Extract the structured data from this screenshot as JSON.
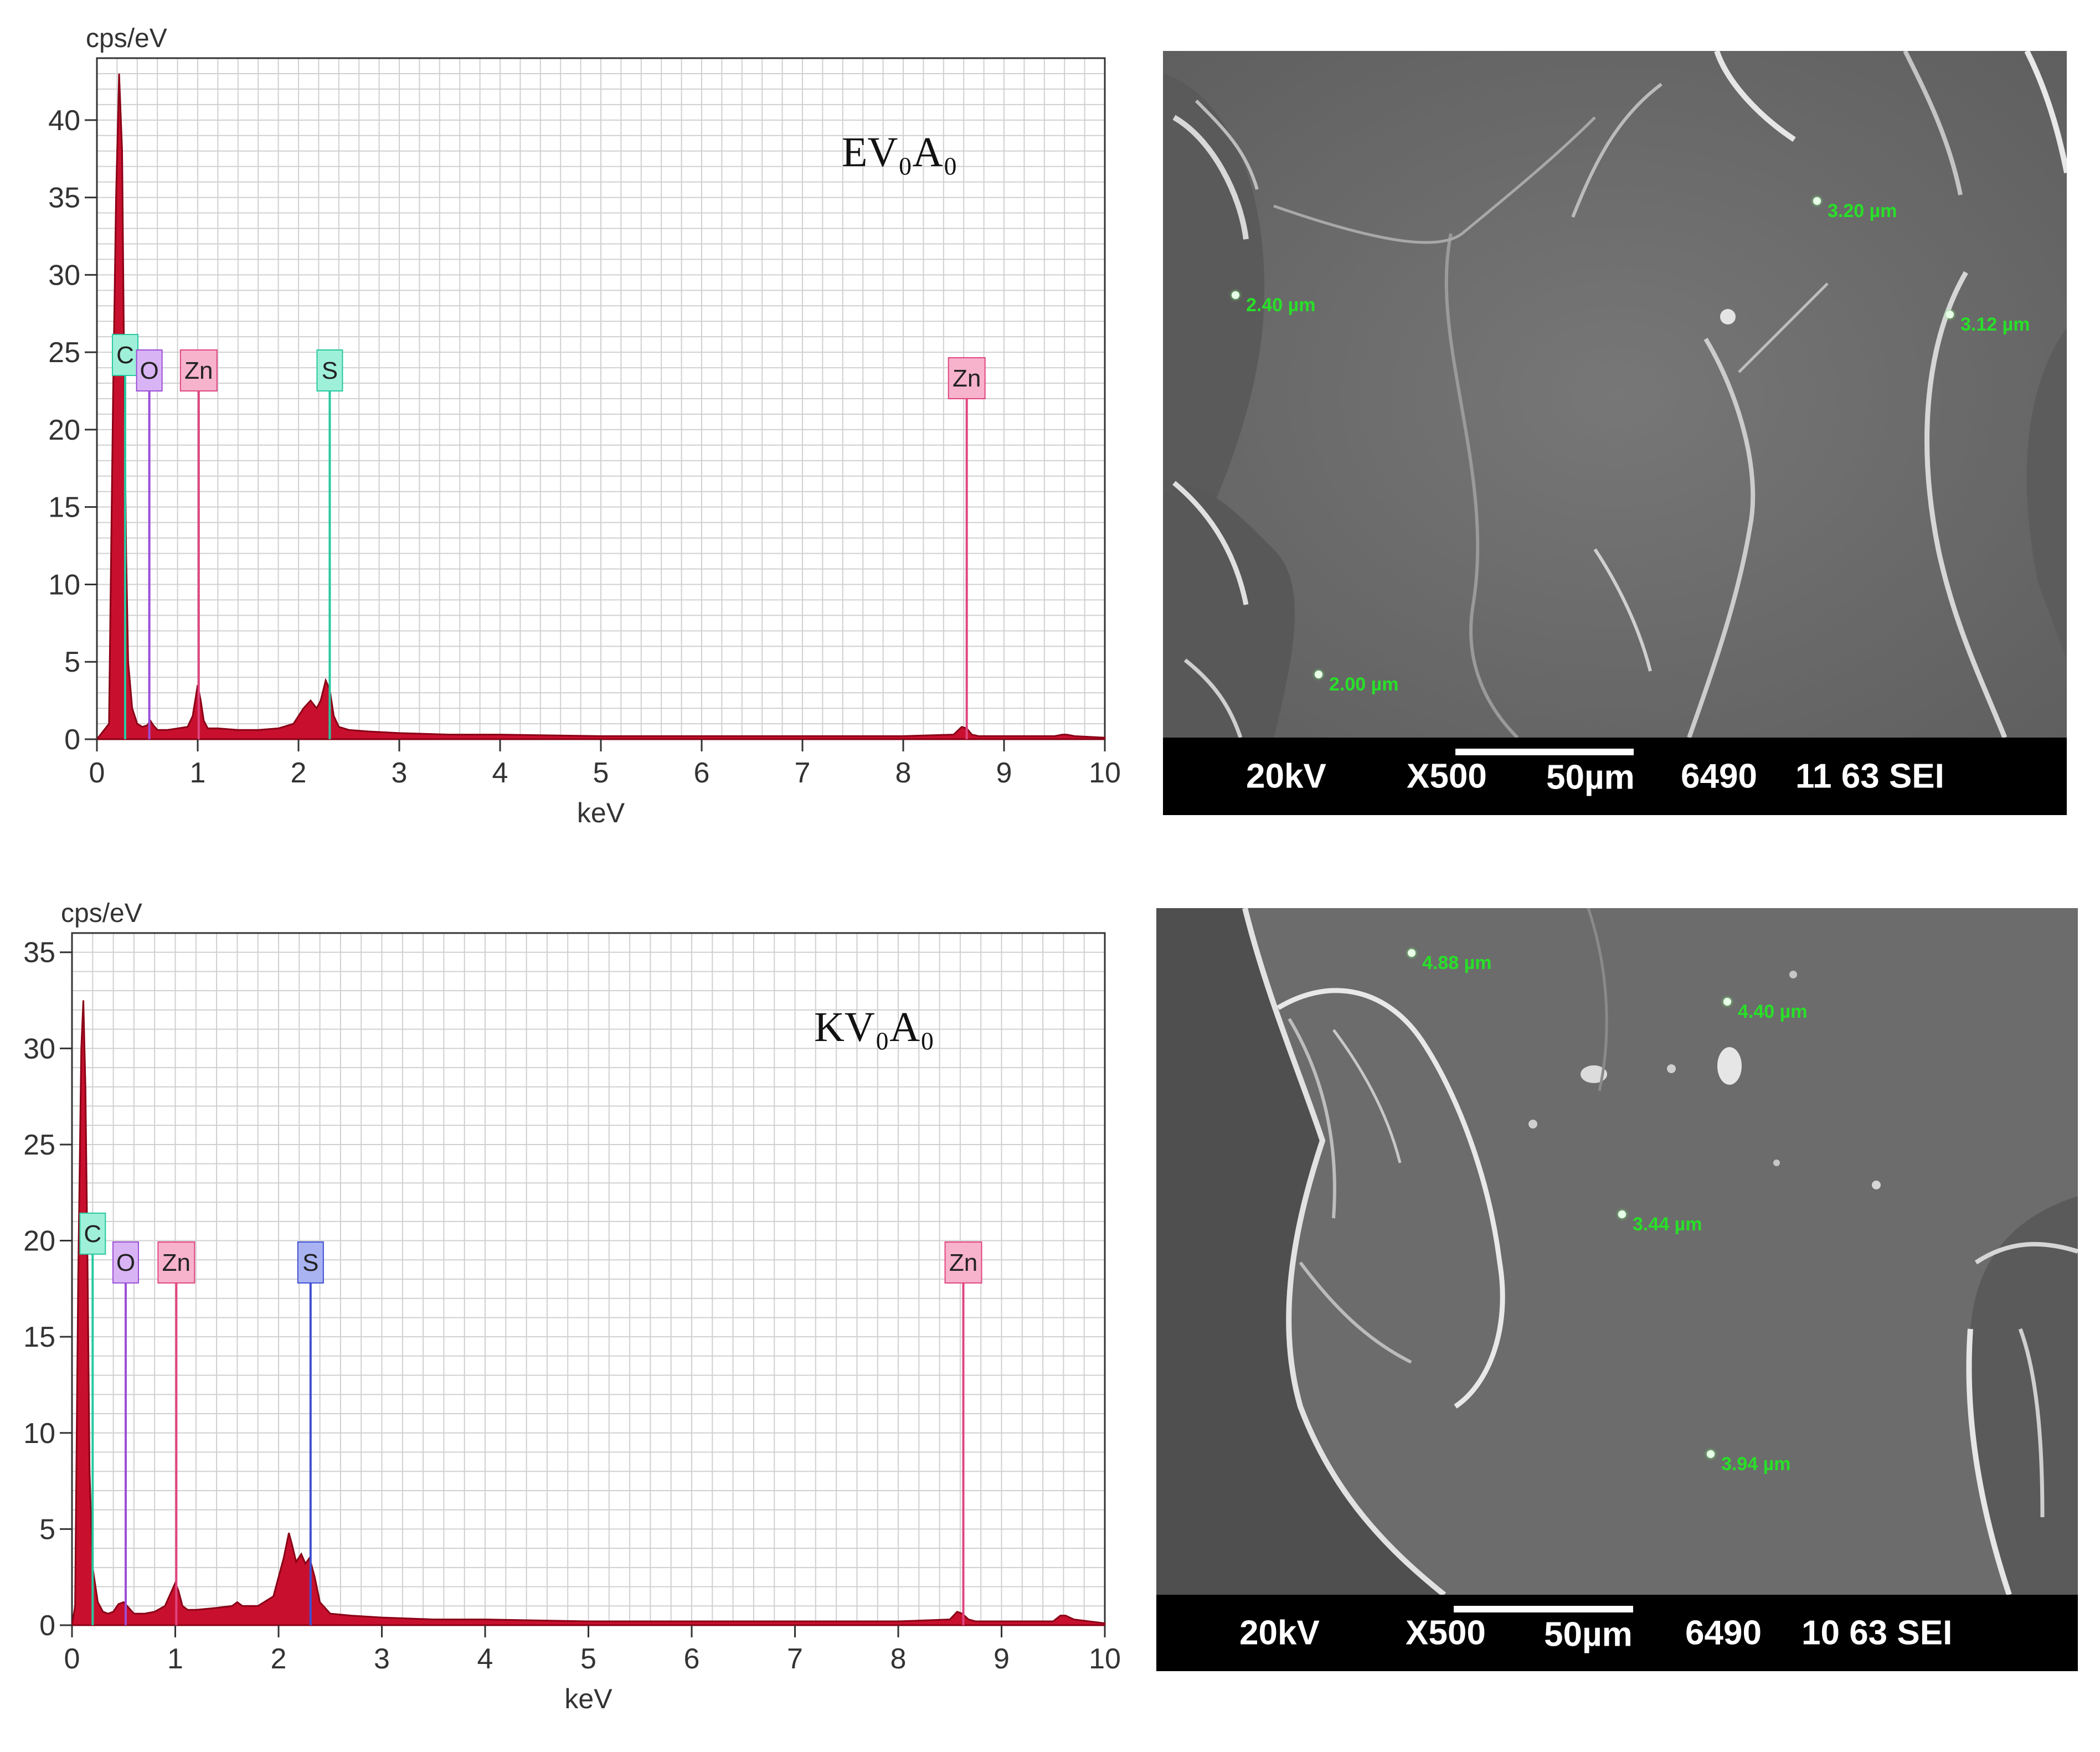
{
  "chart_data": [
    {
      "type": "line",
      "title": "",
      "annotation": "EV₀A₀",
      "xlabel": "keV",
      "ylabel": "cps/eV",
      "xlim": [
        0,
        10
      ],
      "ylim": [
        0,
        44
      ],
      "x_ticks": [
        0,
        1,
        2,
        3,
        4,
        5,
        6,
        7,
        8,
        9,
        10
      ],
      "y_ticks": [
        0,
        5,
        10,
        15,
        20,
        25,
        30,
        35,
        40
      ],
      "grid": true,
      "series": [
        {
          "x": [
            0.0,
            0.12,
            0.16,
            0.19,
            0.22,
            0.25,
            0.27,
            0.29,
            0.31,
            0.35,
            0.4,
            0.45,
            0.5,
            0.53,
            0.56,
            0.6,
            0.7,
            0.8,
            0.9,
            0.95,
            1.0,
            1.03,
            1.06,
            1.1,
            1.2,
            1.4,
            1.6,
            1.8,
            1.95,
            2.05,
            2.12,
            2.18,
            2.22,
            2.27,
            2.31,
            2.35,
            2.4,
            2.5,
            2.7,
            3.0,
            3.5,
            4.0,
            5.0,
            6.0,
            7.0,
            8.0,
            8.5,
            8.58,
            8.63,
            8.68,
            8.75,
            9.0,
            9.5,
            9.58,
            9.62,
            9.7,
            10.0
          ],
          "y": [
            0.0,
            1.0,
            22.0,
            35.0,
            43.0,
            38.0,
            24.0,
            12.0,
            5.0,
            2.0,
            1.0,
            0.8,
            0.9,
            1.2,
            0.9,
            0.6,
            0.6,
            0.7,
            0.8,
            1.5,
            3.5,
            2.5,
            1.2,
            0.7,
            0.7,
            0.6,
            0.6,
            0.7,
            1.0,
            2.0,
            2.5,
            2.0,
            2.5,
            3.8,
            3.2,
            1.5,
            0.8,
            0.6,
            0.5,
            0.4,
            0.3,
            0.3,
            0.2,
            0.2,
            0.2,
            0.2,
            0.3,
            0.8,
            0.7,
            0.3,
            0.2,
            0.2,
            0.2,
            0.3,
            0.3,
            0.2,
            0.1
          ]
        }
      ],
      "markers": [
        {
          "label": "C",
          "energy": 0.28,
          "color": "#27c9a0",
          "fill": "#9ff0d8",
          "top": 23.5
        },
        {
          "label": "O",
          "energy": 0.52,
          "color": "#9a4ed6",
          "fill": "#d9b4f5",
          "top": 22.5
        },
        {
          "label": "Zn",
          "energy": 1.01,
          "color": "#e0457f",
          "fill": "#f7b2cc",
          "top": 22.5
        },
        {
          "label": "S",
          "energy": 2.31,
          "color": "#27c9a0",
          "fill": "#9ff0d8",
          "top": 22.5
        },
        {
          "label": "Zn",
          "energy": 8.63,
          "color": "#e0457f",
          "fill": "#f7b2cc",
          "top": 22.0
        }
      ]
    },
    {
      "type": "line",
      "title": "",
      "annotation": "KV₀A₀",
      "xlabel": "keV",
      "ylabel": "cps/eV",
      "xlim": [
        0,
        10
      ],
      "ylim": [
        0,
        36
      ],
      "x_ticks": [
        0,
        1,
        2,
        3,
        4,
        5,
        6,
        7,
        8,
        9,
        10
      ],
      "y_ticks": [
        0,
        5,
        10,
        15,
        20,
        25,
        30,
        35
      ],
      "grid": true,
      "series": [
        {
          "x": [
            0.0,
            0.03,
            0.06,
            0.09,
            0.11,
            0.13,
            0.15,
            0.17,
            0.2,
            0.25,
            0.3,
            0.35,
            0.4,
            0.45,
            0.5,
            0.55,
            0.6,
            0.7,
            0.8,
            0.9,
            0.95,
            1.0,
            1.03,
            1.07,
            1.12,
            1.2,
            1.4,
            1.55,
            1.6,
            1.65,
            1.8,
            1.95,
            2.05,
            2.1,
            2.13,
            2.17,
            2.22,
            2.26,
            2.3,
            2.35,
            2.4,
            2.5,
            2.7,
            3.0,
            3.5,
            4.0,
            5.0,
            6.0,
            7.0,
            8.0,
            8.5,
            8.57,
            8.62,
            8.68,
            8.75,
            9.0,
            9.5,
            9.57,
            9.62,
            9.7,
            10.0
          ],
          "y": [
            0.0,
            1.0,
            18.0,
            30.0,
            32.5,
            28.0,
            19.0,
            8.0,
            3.0,
            1.2,
            0.7,
            0.6,
            0.7,
            1.1,
            1.2,
            0.9,
            0.6,
            0.6,
            0.7,
            1.0,
            1.6,
            2.2,
            1.8,
            1.0,
            0.8,
            0.8,
            0.9,
            1.0,
            1.2,
            1.0,
            1.0,
            1.5,
            3.5,
            4.8,
            4.2,
            3.3,
            3.7,
            3.2,
            3.5,
            2.5,
            1.2,
            0.6,
            0.5,
            0.4,
            0.3,
            0.3,
            0.2,
            0.2,
            0.2,
            0.2,
            0.3,
            0.7,
            0.6,
            0.3,
            0.2,
            0.2,
            0.2,
            0.5,
            0.5,
            0.3,
            0.1
          ]
        }
      ],
      "markers": [
        {
          "label": "C",
          "energy": 0.2,
          "color": "#27c9a0",
          "fill": "#9ff0d8",
          "top": 19.3
        },
        {
          "label": "O",
          "energy": 0.52,
          "color": "#9a4ed6",
          "fill": "#d9b4f5",
          "top": 17.8
        },
        {
          "label": "Zn",
          "energy": 1.01,
          "color": "#e0457f",
          "fill": "#f7b2cc",
          "top": 17.8
        },
        {
          "label": "S",
          "energy": 2.31,
          "color": "#3e4fd0",
          "fill": "#a9b3f2",
          "top": 17.8
        },
        {
          "label": "Zn",
          "energy": 8.63,
          "color": "#e0457f",
          "fill": "#f7b2cc",
          "top": 17.8
        }
      ]
    }
  ],
  "sem_images": [
    {
      "bar": {
        "voltage": "20kV",
        "magnification": "X500",
        "scale": "50µm",
        "number": "6490",
        "id": "11 63 SEI"
      },
      "measurements": [
        "3.20 µm",
        "2.40 µm",
        "3.12 µm",
        "2.00 µm"
      ]
    },
    {
      "bar": {
        "voltage": "20kV",
        "magnification": "X500",
        "scale": "50µm",
        "number": "6490",
        "id": "10 63 SEI"
      },
      "measurements": [
        "4.88 µm",
        "4.40 µm",
        "3.44 µm",
        "3.94 µm"
      ]
    }
  ],
  "colors": {
    "spectrum_fill": "#c8102e",
    "spectrum_line": "#8a0016",
    "grid": "#d0d0d0",
    "sem_gray": "#6f6f6f",
    "measure_green": "#28e028"
  }
}
